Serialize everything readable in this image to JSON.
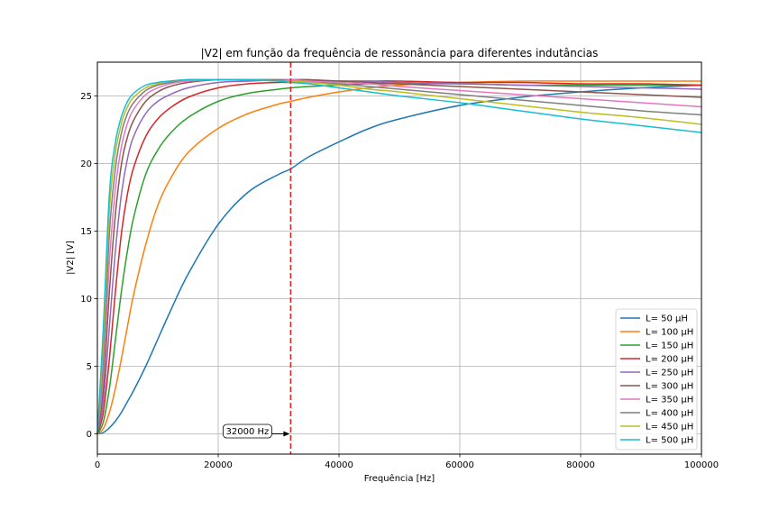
{
  "chart_data": {
    "type": "line",
    "title": "|V2| em função da frequência de ressonância para diferentes indutâncias",
    "xlabel": "Frequência [Hz]",
    "ylabel": "|V2| [V]",
    "xlim": [
      0,
      100000
    ],
    "ylim": [
      -1.5,
      27.5
    ],
    "x_ticks": [
      0,
      20000,
      40000,
      60000,
      80000,
      100000
    ],
    "x_tick_labels": [
      "0",
      "20000",
      "40000",
      "60000",
      "80000",
      "100000"
    ],
    "y_ticks": [
      0,
      5,
      10,
      15,
      20,
      25
    ],
    "y_tick_labels": [
      "0",
      "5",
      "10",
      "15",
      "20",
      "25"
    ],
    "grid": true,
    "legend_position": "lower-right",
    "x": [
      0,
      1000,
      2000,
      3000,
      4000,
      5000,
      6000,
      8000,
      10000,
      12000,
      15000,
      20000,
      25000,
      30000,
      32000,
      35000,
      40000,
      45000,
      50000,
      60000,
      70000,
      80000,
      90000,
      100000
    ],
    "series": [
      {
        "name": "L= 50 μH",
        "color": "#1f77b4",
        "values": [
          0,
          0.1,
          0.45,
          0.95,
          1.6,
          2.4,
          3.2,
          5.0,
          7.0,
          9.0,
          11.8,
          15.5,
          17.9,
          19.2,
          19.6,
          20.5,
          21.6,
          22.6,
          23.3,
          24.3,
          24.9,
          25.3,
          25.6,
          25.8
        ]
      },
      {
        "name": "L= 100 μH",
        "color": "#ff7f0e",
        "values": [
          0,
          0.4,
          1.6,
          3.4,
          5.6,
          8.0,
          10.3,
          14.0,
          16.9,
          18.8,
          20.8,
          22.6,
          23.7,
          24.4,
          24.6,
          24.9,
          25.3,
          25.6,
          25.8,
          26.0,
          26.1,
          26.1,
          26.1,
          26.1
        ]
      },
      {
        "name": "L= 150 μH",
        "color": "#2ca02c",
        "values": [
          0,
          0.9,
          3.4,
          7.0,
          10.6,
          13.6,
          16.0,
          19.2,
          21.0,
          22.2,
          23.4,
          24.6,
          25.2,
          25.5,
          25.6,
          25.7,
          25.8,
          25.9,
          25.9,
          25.9,
          25.8,
          25.8,
          25.8,
          25.8
        ]
      },
      {
        "name": "L= 200 μH",
        "color": "#d62728",
        "values": [
          0,
          1.6,
          5.6,
          10.6,
          14.9,
          17.8,
          19.7,
          22.0,
          23.3,
          24.1,
          24.9,
          25.6,
          25.9,
          26.0,
          26.0,
          26.1,
          26.1,
          26.1,
          26.1,
          26.0,
          26.0,
          25.9,
          25.9,
          25.8
        ]
      },
      {
        "name": "L= 250 μH",
        "color": "#9467bd",
        "values": [
          0,
          2.4,
          8.0,
          13.6,
          17.8,
          20.4,
          22.0,
          23.7,
          24.6,
          25.1,
          25.6,
          26.0,
          26.1,
          26.2,
          26.2,
          26.2,
          26.1,
          26.1,
          26.0,
          25.9,
          25.8,
          25.7,
          25.6,
          25.5
        ]
      },
      {
        "name": "L= 300 μH",
        "color": "#8c564b",
        "values": [
          0,
          3.4,
          10.6,
          16.3,
          20.0,
          22.0,
          23.2,
          24.6,
          25.3,
          25.7,
          26.0,
          26.2,
          26.2,
          26.2,
          26.2,
          26.2,
          26.1,
          26.0,
          25.9,
          25.7,
          25.5,
          25.3,
          25.1,
          24.9
        ]
      },
      {
        "name": "L= 350 μH",
        "color": "#e377c2",
        "values": [
          0,
          4.5,
          12.8,
          18.2,
          21.3,
          23.0,
          24.0,
          25.1,
          25.6,
          25.9,
          26.1,
          26.2,
          26.2,
          26.2,
          26.2,
          26.1,
          26.0,
          25.9,
          25.7,
          25.4,
          25.1,
          24.8,
          24.5,
          24.2
        ]
      },
      {
        "name": "L= 400 μH",
        "color": "#7f7f7f",
        "values": [
          0,
          5.6,
          14.9,
          19.7,
          22.3,
          23.7,
          24.5,
          25.4,
          25.8,
          26.0,
          26.2,
          26.2,
          26.2,
          26.2,
          26.1,
          26.0,
          25.9,
          25.7,
          25.5,
          25.1,
          24.7,
          24.3,
          23.9,
          23.6
        ]
      },
      {
        "name": "L= 450 μH",
        "color": "#bcbd22",
        "values": [
          0,
          6.8,
          16.6,
          20.8,
          23.0,
          24.2,
          24.9,
          25.6,
          25.9,
          26.1,
          26.2,
          26.2,
          26.2,
          26.1,
          26.1,
          26.0,
          25.8,
          25.5,
          25.3,
          24.8,
          24.3,
          23.8,
          23.4,
          22.9
        ]
      },
      {
        "name": "L= 500 μH",
        "color": "#17becf",
        "values": [
          0,
          8.0,
          17.8,
          21.6,
          23.5,
          24.6,
          25.2,
          25.8,
          26.0,
          26.1,
          26.2,
          26.2,
          26.2,
          26.1,
          26.0,
          25.9,
          25.6,
          25.3,
          25.0,
          24.5,
          23.9,
          23.3,
          22.8,
          22.3
        ]
      }
    ],
    "vline": {
      "x": 32000,
      "color": "#d62728"
    },
    "annotation": {
      "text": "32000 Hz",
      "x": 32000,
      "y": 0
    }
  }
}
